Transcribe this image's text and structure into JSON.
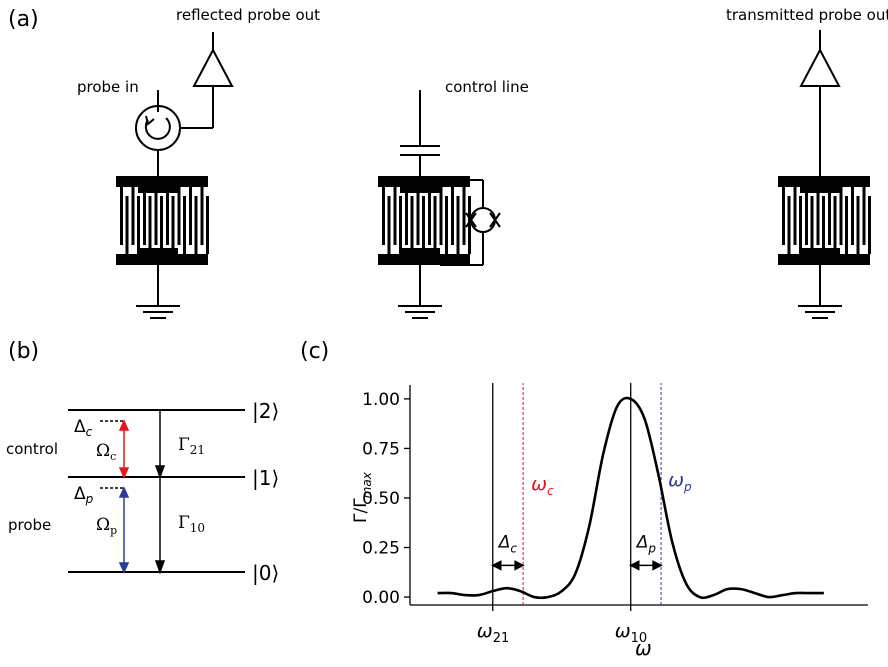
{
  "panel_labels": {
    "a": "(a)",
    "b": "(b)",
    "c": "(c)"
  },
  "circuit": {
    "probe_in": "probe in",
    "reflected_probe_out": "reflected probe out",
    "control_line": "control line",
    "transmitted_probe_out": "transmitted probe out"
  },
  "levels": {
    "ket2": "|2⟩",
    "ket1": "|1⟩",
    "ket0": "|0⟩",
    "delta_c": "Δc",
    "delta_p": "Δp",
    "omega_c": "Ωc",
    "omega_p": "Ωp",
    "gamma21": "Γ21",
    "gamma10": "Γ10",
    "control": "control",
    "probe": "probe"
  },
  "colors": {
    "control": "#e8141c",
    "probe": "#2b3a9c",
    "line": "#000000"
  },
  "chart_data": {
    "type": "line",
    "ylabel": "Γ/Γmax",
    "xlabel": "ω",
    "ylim": [
      0,
      1.05
    ],
    "yticks": [
      "0.00",
      "0.25",
      "0.50",
      "0.75",
      "1.00"
    ],
    "xtick_labels": [
      "ω21",
      "ω10"
    ],
    "vlines": [
      {
        "label": "ω21",
        "x": -5.0
      },
      {
        "label": "ω10",
        "x": 0.0
      },
      {
        "label": "ωc",
        "x": -3.9,
        "dashed": true
      },
      {
        "label": "ωp",
        "x": 1.1,
        "dashed": true
      }
    ],
    "annotations": {
      "omega_c": "ωc",
      "omega_p": "ωp",
      "delta_c": "Δc",
      "delta_p": "Δp"
    },
    "x": [
      -7.0,
      -6.5,
      -6.0,
      -5.5,
      -5.0,
      -4.5,
      -4.0,
      -3.5,
      -3.0,
      -2.5,
      -2.0,
      -1.5,
      -1.0,
      -0.5,
      0.0,
      0.5,
      1.0,
      1.5,
      2.0,
      2.5,
      3.0,
      3.5,
      4.0,
      4.5,
      5.0,
      5.5,
      6.0,
      6.5,
      7.0
    ],
    "y": [
      0.02,
      0.02,
      0.01,
      0.01,
      0.03,
      0.045,
      0.03,
      0.0,
      0.0,
      0.03,
      0.12,
      0.36,
      0.72,
      0.96,
      1.0,
      0.9,
      0.62,
      0.28,
      0.07,
      0.0,
      0.01,
      0.04,
      0.04,
      0.02,
      0.0,
      0.01,
      0.02,
      0.02,
      0.02
    ]
  }
}
